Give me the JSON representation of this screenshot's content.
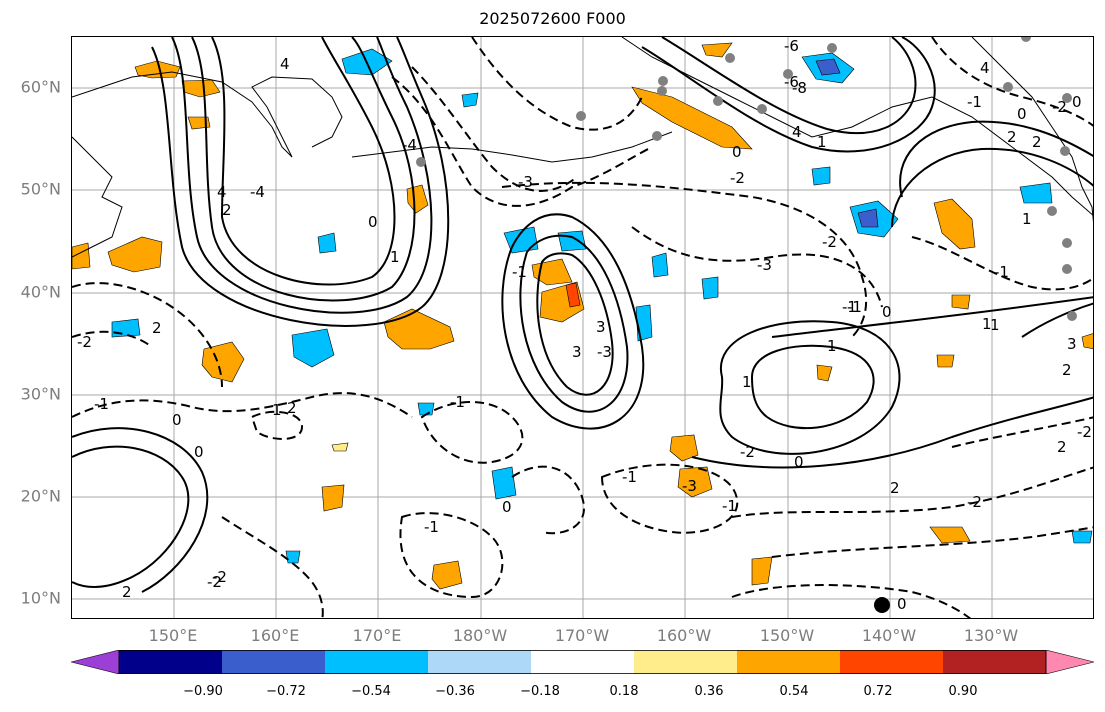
{
  "title": "2025072600 F000",
  "map": {
    "lat_labels": [
      "60°N",
      "50°N",
      "40°N",
      "30°N",
      "20°N",
      "10°N"
    ],
    "lon_labels": [
      "150°E",
      "160°E",
      "170°E",
      "180°W",
      "170°W",
      "160°W",
      "150°W",
      "140°W",
      "130°W"
    ],
    "contour_labels": [
      "4",
      "2",
      "-4",
      "-4",
      "1",
      "0",
      "-3",
      "-2",
      "0",
      "1",
      "4",
      "-6",
      "-8",
      "-2",
      "-1",
      "0",
      "-3",
      "1",
      "-1",
      "-2",
      "-3",
      "0",
      "1",
      "2",
      "3",
      "-3",
      "3",
      "-1",
      "-1",
      "0",
      "-1",
      "0",
      "1",
      "2",
      "-1",
      "0",
      "-2",
      "-1",
      "2",
      "-2",
      "-2",
      "-2",
      "2",
      "3",
      "2",
      "1",
      "4",
      "0",
      "-1",
      "2",
      "-6",
      "4",
      "-1",
      "-2",
      "2",
      "0",
      "1",
      "0",
      "-2",
      "-1",
      "1",
      "2"
    ]
  },
  "colorbar": {
    "ticks": [
      "−0.90",
      "−0.72",
      "−0.54",
      "−0.36",
      "−0.18",
      "0.18",
      "0.36",
      "0.54",
      "0.72",
      "0.90"
    ],
    "colors": [
      "#9b3fd6",
      "#00008b",
      "#3a5fcd",
      "#00bfff",
      "#add8f7",
      "#ffffff",
      "#ffec8b",
      "#ffa500",
      "#ff4500",
      "#b22222",
      "#ff88b0"
    ]
  }
}
